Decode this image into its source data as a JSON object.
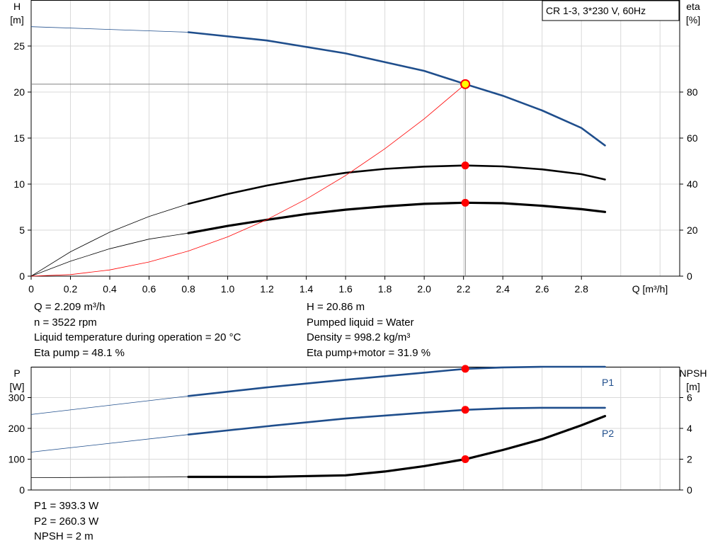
{
  "chart_data": [
    {
      "type": "line",
      "legend_box": "CR 1-3, 3*230 V, 60Hz",
      "xlabel": "Q [m³/h]",
      "ylabel_top": "H",
      "ylabel_bottom": "[m]",
      "y2label_top": "eta",
      "y2label_bottom": "[%]",
      "xlim": [
        0,
        3.3
      ],
      "ylim": [
        0,
        30
      ],
      "y2lim": [
        0,
        120
      ],
      "xticks": [
        0,
        0.2,
        0.4,
        0.6,
        0.8,
        1.0,
        1.2,
        1.4,
        1.6,
        1.8,
        2.0,
        2.2,
        2.4,
        2.6,
        2.8
      ],
      "xtick_labels": [
        "0",
        "0.2",
        "0.4",
        "0.6",
        "0.8",
        "1.0",
        "1.2",
        "1.4",
        "1.6",
        "1.8",
        "2.0",
        "2.2",
        "2.4",
        "2.6",
        "2.8"
      ],
      "yticks": [
        0,
        5,
        10,
        15,
        20,
        25
      ],
      "ytick_labels": [
        "0",
        "5",
        "10",
        "15",
        "20",
        "25"
      ],
      "y2ticks": [
        0,
        20,
        40,
        60,
        80
      ],
      "y2tick_labels": [
        "0",
        "20",
        "40",
        "60",
        "80"
      ],
      "grid": true,
      "duty_point": {
        "x": 2.209,
        "y": 20.86
      },
      "series": [
        {
          "key": "head",
          "axis": "left",
          "color": "#1f4e8c",
          "x": [
            0,
            0.8,
            1.2,
            1.6,
            2.0,
            2.209,
            2.4,
            2.6,
            2.8,
            2.92
          ],
          "y": [
            27.1,
            26.5,
            25.6,
            24.2,
            22.3,
            20.86,
            19.6,
            18.0,
            16.1,
            14.2
          ]
        },
        {
          "key": "eta_pump",
          "axis": "right",
          "color": "#000000",
          "x": [
            0,
            0.2,
            0.4,
            0.6,
            0.8,
            1.0,
            1.2,
            1.4,
            1.6,
            1.8,
            2.0,
            2.209,
            2.4,
            2.6,
            2.8,
            2.92
          ],
          "y": [
            0,
            10.6,
            19.1,
            25.9,
            31.4,
            35.7,
            39.4,
            42.4,
            44.9,
            46.6,
            47.6,
            48.1,
            47.7,
            46.4,
            44.3,
            42.0
          ]
        },
        {
          "key": "eta_total",
          "axis": "right",
          "color": "#000000",
          "x": [
            0,
            0.2,
            0.4,
            0.6,
            0.8,
            1.0,
            1.2,
            1.4,
            1.6,
            1.8,
            2.0,
            2.209,
            2.4,
            2.6,
            2.8,
            2.92
          ],
          "y": [
            0,
            6.5,
            11.9,
            16.1,
            18.7,
            21.8,
            24.5,
            27.0,
            28.9,
            30.3,
            31.4,
            31.9,
            31.7,
            30.6,
            29.1,
            27.9
          ]
        },
        {
          "key": "system",
          "axis": "left",
          "color": "#ff0000",
          "x": [
            0,
            0.2,
            0.4,
            0.6,
            0.8,
            1.0,
            1.2,
            1.4,
            1.6,
            1.8,
            2.0,
            2.209
          ],
          "y": [
            0,
            0.17,
            0.68,
            1.54,
            2.73,
            4.27,
            6.15,
            8.37,
            10.93,
            13.84,
            17.09,
            20.86
          ]
        }
      ],
      "markers": [
        {
          "axis": "right",
          "x": 2.209,
          "y": 48.1
        },
        {
          "axis": "right",
          "x": 2.209,
          "y": 31.9
        }
      ]
    },
    {
      "type": "line",
      "ylabel_top": "P",
      "ylabel_bottom": "[W]",
      "y2label_top": "NPSH",
      "y2label_bottom": "[m]",
      "xlim": [
        0,
        3.3
      ],
      "ylim": [
        0,
        400
      ],
      "y2lim": [
        0,
        8
      ],
      "yticks": [
        0,
        100,
        200,
        300
      ],
      "ytick_labels": [
        "0",
        "100",
        "200",
        "300"
      ],
      "y2ticks": [
        0,
        2,
        4,
        6
      ],
      "y2tick_labels": [
        "0",
        "2",
        "4",
        "6"
      ],
      "grid": true,
      "series": [
        {
          "key": "p1",
          "name": "P1",
          "axis": "left",
          "color": "#1f4e8c",
          "x": [
            0,
            0.8,
            1.2,
            1.6,
            2.0,
            2.209,
            2.4,
            2.6,
            2.8,
            2.92
          ],
          "y": [
            245,
            305,
            333,
            358,
            381,
            393.3,
            398,
            400,
            400,
            400
          ]
        },
        {
          "key": "p2",
          "name": "P2",
          "axis": "left",
          "color": "#1f4e8c",
          "x": [
            0,
            0.8,
            1.2,
            1.6,
            2.0,
            2.209,
            2.4,
            2.6,
            2.8,
            2.92
          ],
          "y": [
            123,
            180,
            207,
            232,
            251,
            260.3,
            265,
            267,
            267,
            267
          ]
        },
        {
          "key": "npsh",
          "axis": "right",
          "color": "#000000",
          "x": [
            0,
            0.8,
            1.2,
            1.6,
            1.8,
            2.0,
            2.209,
            2.4,
            2.6,
            2.8,
            2.92
          ],
          "y": [
            0.8,
            0.85,
            0.85,
            0.95,
            1.2,
            1.55,
            2.0,
            2.6,
            3.3,
            4.2,
            4.8
          ]
        }
      ],
      "markers": [
        {
          "axis": "left",
          "x": 2.209,
          "y": 393.3
        },
        {
          "axis": "left",
          "x": 2.209,
          "y": 260.3
        },
        {
          "axis": "right",
          "x": 2.209,
          "y": 2.0
        }
      ]
    }
  ],
  "info_top_left": [
    "Q = 2.209 m³/h",
    "n = 3522 rpm",
    "Liquid temperature during operation = 20 °C",
    "Eta pump = 48.1 %"
  ],
  "info_top_right": [
    "H = 20.86 m",
    "Pumped liquid = Water",
    "Density = 998.2 kg/m³",
    "Eta pump+motor = 31.9 %"
  ],
  "info_bottom": [
    "P1 = 393.3 W",
    "P2 = 260.3 W",
    "NPSH = 2 m"
  ]
}
